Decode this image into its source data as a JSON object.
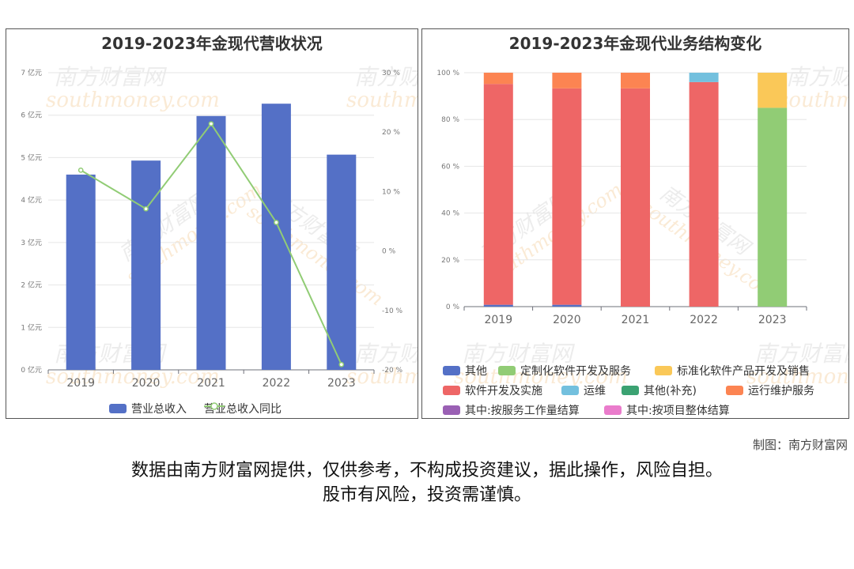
{
  "chart_data": [
    {
      "type": "bar",
      "title": "2019-2023年金现代营收状况",
      "categories": [
        "2019",
        "2020",
        "2021",
        "2022",
        "2023"
      ],
      "series": [
        {
          "name": "营业总收入",
          "type": "bar",
          "axis": "left",
          "values": [
            4.6,
            4.93,
            5.98,
            6.27,
            5.07
          ]
        },
        {
          "name": "营业总收入同比",
          "type": "line",
          "axis": "right",
          "values": [
            13.6,
            7.1,
            21.4,
            4.8,
            -19.1
          ]
        }
      ],
      "y_left": {
        "ticks": [
          "0 亿元",
          "1 亿元",
          "2 亿元",
          "3 亿元",
          "4 亿元",
          "5 亿元",
          "6 亿元",
          "7 亿元"
        ],
        "ylim": [
          0,
          7
        ]
      },
      "y_right": {
        "ticks": [
          "-20 %",
          "-10 %",
          "0 %",
          "10 %",
          "20 %",
          "30 %"
        ],
        "ylim": [
          -20,
          30
        ]
      },
      "colors": {
        "bar": "#5470c6",
        "line": "#91cc75"
      },
      "legend": "bottom",
      "grid": true
    },
    {
      "type": "bar",
      "stacked": true,
      "title": "2019-2023年金现代业务结构变化",
      "categories": [
        "2019",
        "2020",
        "2021",
        "2022",
        "2023"
      ],
      "y_ticks": [
        "0 %",
        "20 %",
        "40 %",
        "60 %",
        "80 %",
        "100 %"
      ],
      "ylim": [
        0,
        100
      ],
      "series": [
        {
          "name": "其他",
          "color": "#5470c6",
          "values": [
            0.8,
            0.8,
            0,
            0,
            0
          ]
        },
        {
          "name": "定制化软件开发及服务",
          "color": "#91cc75",
          "values": [
            0,
            0,
            0,
            0,
            85
          ]
        },
        {
          "name": "标准化软件产品开发及销售",
          "color": "#fac858",
          "values": [
            0,
            0,
            0,
            0,
            15
          ]
        },
        {
          "name": "软件开发及实施",
          "color": "#ee6666",
          "values": [
            94.4,
            92.5,
            93.3,
            96.0,
            0
          ]
        },
        {
          "name": "运维",
          "color": "#73c0de",
          "values": [
            0,
            0,
            0,
            4.0,
            0
          ]
        },
        {
          "name": "其他(补充)",
          "color": "#3ba272",
          "values": [
            0,
            0,
            0,
            0,
            0
          ]
        },
        {
          "name": "运行维护服务",
          "color": "#fc8452",
          "values": [
            4.8,
            6.7,
            6.7,
            0,
            0
          ]
        },
        {
          "name": "其中:按服务工作量结算",
          "color": "#9a60b4",
          "values": [
            0,
            0,
            0,
            0,
            0
          ]
        },
        {
          "name": "其中:按项目整体结算",
          "color": "#ea7ccc",
          "values": [
            0,
            0,
            0,
            0,
            0
          ]
        }
      ],
      "legend": "bottom",
      "grid": true
    }
  ],
  "watermark": {
    "cn": "南方财富网",
    "en": "southmoney.com"
  },
  "footer": {
    "credit": "制图：南方财富网",
    "disclaimer_line1": "数据由南方财富网提供，仅供参考，不构成投资建议，据此操作，风险自担。",
    "disclaimer_line2": "股市有风险，投资需谨慎。"
  }
}
